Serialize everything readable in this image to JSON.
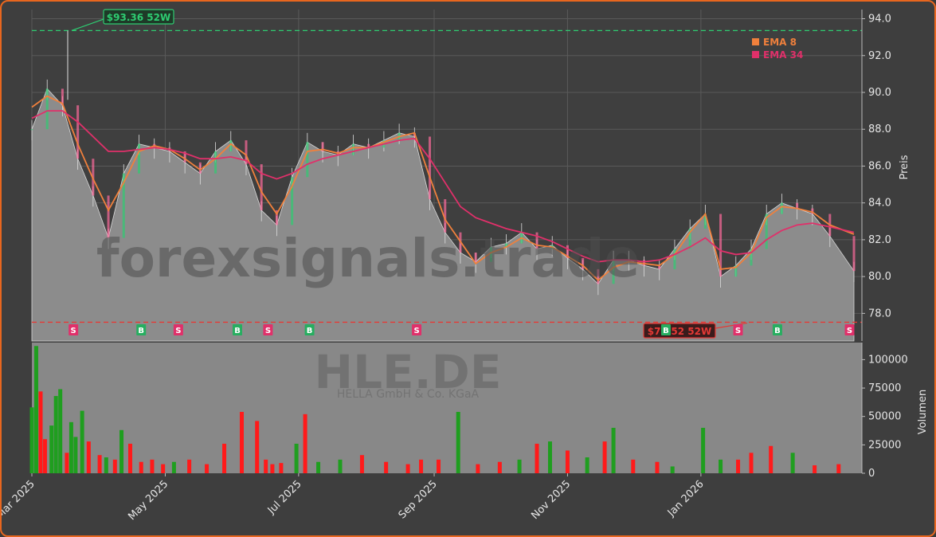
{
  "chart_data": [
    {
      "type": "line",
      "panel": "price",
      "ylabel": "Preis",
      "ylim": [
        76.5,
        94.5
      ],
      "yticks": [
        "78.0",
        "80.0",
        "82.0",
        "84.0",
        "86.0",
        "88.0",
        "90.0",
        "92.0",
        "94.0"
      ],
      "ytick_values": [
        78,
        80,
        82,
        84,
        86,
        88,
        90,
        92,
        94
      ],
      "x_range": [
        "2025-03-01",
        "2026-03-12"
      ],
      "xticks": [
        "Mar 2025",
        "May 2025",
        "Jul 2025",
        "Sep 2025",
        "Nov 2025",
        "Jan 2026"
      ],
      "xtick_dates": [
        "2025-03-01",
        "2025-05-01",
        "2025-07-01",
        "2025-09-01",
        "2025-11-01",
        "2026-01-01"
      ],
      "grid": true,
      "legend_position": "top-right",
      "price_series": {
        "dates": [
          "2025-03-01",
          "2025-03-08",
          "2025-03-15",
          "2025-03-22",
          "2025-03-29",
          "2025-04-05",
          "2025-04-12",
          "2025-04-19",
          "2025-04-26",
          "2025-05-03",
          "2025-05-10",
          "2025-05-17",
          "2025-05-24",
          "2025-05-31",
          "2025-06-07",
          "2025-06-14",
          "2025-06-21",
          "2025-06-28",
          "2025-07-05",
          "2025-07-12",
          "2025-07-19",
          "2025-07-26",
          "2025-08-02",
          "2025-08-09",
          "2025-08-16",
          "2025-08-23",
          "2025-08-30",
          "2025-09-06",
          "2025-09-13",
          "2025-09-20",
          "2025-09-27",
          "2025-10-04",
          "2025-10-11",
          "2025-10-18",
          "2025-10-25",
          "2025-11-01",
          "2025-11-08",
          "2025-11-15",
          "2025-11-22",
          "2025-11-29",
          "2025-12-06",
          "2025-12-13",
          "2025-12-20",
          "2025-12-27",
          "2026-01-03",
          "2026-01-10",
          "2026-01-17",
          "2026-01-24",
          "2026-01-31",
          "2026-02-07",
          "2026-02-14",
          "2026-02-21",
          "2026-03-01",
          "2026-03-12"
        ],
        "close": [
          88.0,
          90.2,
          89.3,
          86.4,
          84.4,
          82.1,
          85.6,
          87.2,
          87.0,
          86.8,
          86.2,
          85.6,
          86.8,
          87.4,
          86.1,
          83.6,
          82.8,
          85.4,
          87.3,
          86.8,
          86.6,
          87.2,
          87.0,
          87.4,
          87.8,
          87.6,
          84.2,
          82.4,
          81.3,
          80.8,
          81.6,
          81.8,
          82.4,
          81.5,
          81.7,
          81.0,
          80.4,
          79.6,
          80.9,
          80.9,
          80.6,
          80.4,
          81.5,
          82.6,
          83.4,
          80.0,
          80.6,
          81.5,
          83.4,
          84.0,
          83.7,
          83.4,
          82.2,
          80.3
        ]
      },
      "series": [
        {
          "name": "EMA 8",
          "color": "#f0803c",
          "values": [
            89.2,
            89.8,
            89.4,
            87.2,
            85.3,
            83.6,
            85.1,
            86.8,
            87.1,
            86.9,
            86.4,
            85.8,
            86.4,
            87.2,
            86.6,
            84.6,
            83.4,
            84.9,
            86.8,
            86.9,
            86.7,
            87.0,
            87.0,
            87.3,
            87.6,
            87.8,
            85.4,
            83.1,
            81.9,
            80.7,
            81.3,
            81.6,
            82.1,
            81.7,
            81.6,
            81.1,
            80.6,
            79.8,
            80.5,
            80.8,
            80.7,
            80.6,
            81.2,
            82.4,
            83.4,
            80.4,
            80.5,
            81.3,
            83.2,
            83.8,
            83.7,
            83.5,
            82.8,
            82.3
          ]
        },
        {
          "name": "EMA 34",
          "color": "#e0306a",
          "values": [
            88.6,
            89.0,
            89.0,
            88.4,
            87.6,
            86.8,
            86.8,
            86.9,
            87.0,
            86.9,
            86.7,
            86.4,
            86.4,
            86.5,
            86.3,
            85.6,
            85.3,
            85.6,
            86.1,
            86.4,
            86.6,
            86.8,
            87.0,
            87.2,
            87.4,
            87.5,
            86.4,
            85.1,
            83.8,
            83.2,
            82.9,
            82.6,
            82.4,
            82.2,
            81.9,
            81.5,
            81.1,
            80.8,
            80.9,
            80.9,
            80.8,
            80.9,
            81.2,
            81.6,
            82.1,
            81.4,
            81.2,
            81.3,
            82.0,
            82.5,
            82.8,
            82.9,
            82.7,
            82.4
          ]
        }
      ],
      "annotations": [
        {
          "text": "$93.36 52W",
          "value": 93.36,
          "color": "#2ecc71"
        },
        {
          "text": "$77.52 52W",
          "value": 77.52,
          "color": "#e53935"
        }
      ],
      "signals": [
        {
          "label": "S",
          "date": "2025-03-20",
          "color": "#e0306a"
        },
        {
          "label": "B",
          "date": "2025-04-20",
          "color": "#27ae60"
        },
        {
          "label": "S",
          "date": "2025-05-07",
          "color": "#e0306a"
        },
        {
          "label": "B",
          "date": "2025-06-03",
          "color": "#27ae60"
        },
        {
          "label": "S",
          "date": "2025-06-17",
          "color": "#e0306a"
        },
        {
          "label": "B",
          "date": "2025-07-06",
          "color": "#27ae60"
        },
        {
          "label": "S",
          "date": "2025-08-24",
          "color": "#e0306a"
        },
        {
          "label": "B",
          "date": "2025-12-16",
          "color": "#27ae60"
        },
        {
          "label": "S",
          "date": "2026-01-18",
          "color": "#e0306a"
        },
        {
          "label": "B",
          "date": "2026-02-05",
          "color": "#27ae60"
        },
        {
          "label": "S",
          "date": "2026-03-10",
          "color": "#e0306a"
        }
      ]
    },
    {
      "type": "bar",
      "panel": "volume",
      "ylabel": "Volumen",
      "ylim": [
        0,
        115000
      ],
      "yticks": [
        "0",
        "25000",
        "50000",
        "75000",
        "100000"
      ],
      "ytick_values": [
        0,
        25000,
        50000,
        75000,
        100000
      ],
      "up_color": "#1f9e1f",
      "down_color": "#ff1a1a",
      "dates": [
        "2025-03-01",
        "2025-03-03",
        "2025-03-05",
        "2025-03-07",
        "2025-03-10",
        "2025-03-12",
        "2025-03-14",
        "2025-03-17",
        "2025-03-19",
        "2025-03-21",
        "2025-03-24",
        "2025-03-27",
        "2025-04-01",
        "2025-04-04",
        "2025-04-08",
        "2025-04-11",
        "2025-04-15",
        "2025-04-20",
        "2025-04-25",
        "2025-04-30",
        "2025-05-05",
        "2025-05-12",
        "2025-05-20",
        "2025-05-28",
        "2025-06-05",
        "2025-06-12",
        "2025-06-16",
        "2025-06-19",
        "2025-06-23",
        "2025-06-30",
        "2025-07-04",
        "2025-07-10",
        "2025-07-20",
        "2025-07-30",
        "2025-08-10",
        "2025-08-20",
        "2025-08-26",
        "2025-09-03",
        "2025-09-12",
        "2025-09-21",
        "2025-10-01",
        "2025-10-10",
        "2025-10-18",
        "2025-10-24",
        "2025-11-01",
        "2025-11-10",
        "2025-11-18",
        "2025-11-22",
        "2025-12-01",
        "2025-12-12",
        "2025-12-19",
        "2026-01-02",
        "2026-01-10",
        "2026-01-18",
        "2026-01-24",
        "2026-02-02",
        "2026-02-12",
        "2026-02-22",
        "2026-03-05"
      ],
      "volumes": [
        58000,
        112000,
        72000,
        30000,
        42000,
        68000,
        74000,
        18000,
        45000,
        32000,
        55000,
        28000,
        16000,
        14000,
        12000,
        38000,
        26000,
        10000,
        12000,
        8000,
        10000,
        12000,
        8000,
        26000,
        54000,
        46000,
        12000,
        8000,
        9000,
        26000,
        52000,
        10000,
        12000,
        16000,
        10000,
        8000,
        12000,
        12000,
        54000,
        8000,
        10000,
        12000,
        26000,
        28000,
        20000,
        14000,
        28000,
        40000,
        12000,
        10000,
        6000,
        40000,
        12000,
        12000,
        18000,
        24000,
        18000,
        7000,
        8000
      ],
      "direction": [
        "up",
        "up",
        "down",
        "down",
        "up",
        "up",
        "up",
        "down",
        "up",
        "up",
        "up",
        "down",
        "down",
        "up",
        "down",
        "up",
        "down",
        "down",
        "down",
        "down",
        "up",
        "down",
        "down",
        "down",
        "down",
        "down",
        "down",
        "down",
        "down",
        "up",
        "down",
        "up",
        "up",
        "down",
        "down",
        "down",
        "down",
        "down",
        "up",
        "down",
        "down",
        "up",
        "down",
        "up",
        "down",
        "up",
        "down",
        "up",
        "down",
        "down",
        "up",
        "up",
        "up",
        "down",
        "down",
        "down",
        "up",
        "down",
        "down"
      ]
    }
  ],
  "watermark": {
    "brand": "forexsignals.trade",
    "ticker": "HLE.DE",
    "company": "HELLA GmbH & Co. KGaA"
  }
}
